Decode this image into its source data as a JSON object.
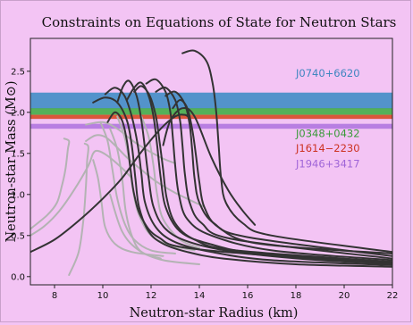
{
  "chart_data": {
    "type": "line",
    "title": "Constraints on Equations of State for Neutron Stars",
    "xlabel": "Neutron-star Radius (km)",
    "ylabel": "Neutron-star Mass (M⊙)",
    "xlim": [
      7,
      22
    ],
    "ylim": [
      -0.1,
      2.9
    ],
    "xticks": [
      8,
      10,
      12,
      14,
      16,
      18,
      20,
      22
    ],
    "yticks": [
      0.0,
      0.5,
      1.0,
      1.5,
      2.0,
      2.5
    ],
    "grid": false,
    "bands": [
      {
        "name": "J0740+6620",
        "low": 2.04,
        "high": 2.24,
        "color": "#4a90c8",
        "text_color": "#3f86c0",
        "label_x": 18.0,
        "label_y": 2.43
      },
      {
        "name": "J0348+0432",
        "low": 1.97,
        "high": 2.05,
        "color": "#4caf50",
        "text_color": "#3a9a3a",
        "label_x": 18.0,
        "label_y": 1.7
      },
      {
        "name": "J1614−2230",
        "low": 1.92,
        "high": 1.97,
        "color": "#d95030",
        "text_color": "#cc3322",
        "label_x": 18.0,
        "label_y": 1.52
      },
      {
        "name": "J1946+3417",
        "low": 1.8,
        "high": 1.86,
        "color": "#b47ae0",
        "text_color": "#a066d8",
        "label_x": 18.0,
        "label_y": 1.33
      }
    ],
    "series_styles": {
      "gray": {
        "color": "#b3b3b3",
        "width": 2.0
      },
      "dark": {
        "color": "#333333",
        "width": 2.0
      }
    },
    "series": [
      {
        "group": "gray",
        "points": [
          [
            7.0,
            0.58
          ],
          [
            7.7,
            0.75
          ],
          [
            8.1,
            0.9
          ],
          [
            8.3,
            1.1
          ],
          [
            8.45,
            1.3
          ],
          [
            8.55,
            1.55
          ],
          [
            8.6,
            1.65
          ],
          [
            8.4,
            1.68
          ]
        ]
      },
      {
        "group": "gray",
        "points": [
          [
            8.6,
            0.02
          ],
          [
            9.0,
            0.3
          ],
          [
            9.2,
            0.7
          ],
          [
            9.3,
            1.1
          ],
          [
            9.35,
            1.4
          ],
          [
            9.4,
            1.58
          ],
          [
            9.25,
            1.62
          ]
        ]
      },
      {
        "group": "gray",
        "points": [
          [
            7.0,
            0.5
          ],
          [
            7.6,
            0.62
          ],
          [
            8.2,
            0.8
          ],
          [
            8.8,
            1.05
          ],
          [
            9.4,
            1.35
          ],
          [
            9.6,
            1.5
          ],
          [
            9.8,
            1.53
          ],
          [
            10.2,
            1.47
          ],
          [
            10.8,
            1.32
          ],
          [
            11.2,
            1.2
          ]
        ]
      },
      {
        "group": "gray",
        "points": [
          [
            9.3,
            1.65
          ],
          [
            9.7,
            1.72
          ],
          [
            10.1,
            1.7
          ],
          [
            10.5,
            1.6
          ],
          [
            11.0,
            1.45
          ],
          [
            11.6,
            1.3
          ],
          [
            12.2,
            1.16
          ],
          [
            13.0,
            1.02
          ],
          [
            14.2,
            0.85
          ]
        ]
      },
      {
        "group": "gray",
        "points": [
          [
            9.3,
            1.85
          ],
          [
            10.0,
            1.88
          ],
          [
            10.6,
            1.8
          ],
          [
            11.4,
            1.62
          ],
          [
            12.4,
            1.45
          ],
          [
            13.0,
            1.38
          ]
        ]
      },
      {
        "group": "gray",
        "points": [
          [
            10.3,
            1.8
          ],
          [
            10.6,
            1.55
          ],
          [
            10.8,
            1.2
          ],
          [
            10.95,
            0.8
          ],
          [
            11.2,
            0.5
          ],
          [
            11.6,
            0.3
          ],
          [
            12.4,
            0.22
          ]
        ]
      },
      {
        "group": "gray",
        "points": [
          [
            9.9,
            1.88
          ],
          [
            10.2,
            1.65
          ],
          [
            10.4,
            1.3
          ],
          [
            10.6,
            0.95
          ],
          [
            10.9,
            0.65
          ],
          [
            11.3,
            0.45
          ],
          [
            12.0,
            0.32
          ],
          [
            13.0,
            0.28
          ]
        ]
      },
      {
        "group": "gray",
        "points": [
          [
            9.6,
            1.42
          ],
          [
            9.8,
            1.2
          ],
          [
            9.95,
            0.9
          ],
          [
            10.1,
            0.6
          ],
          [
            10.5,
            0.4
          ],
          [
            11.2,
            0.3
          ],
          [
            12.5,
            0.25
          ]
        ]
      },
      {
        "group": "gray",
        "points": [
          [
            10.6,
            1.95
          ],
          [
            10.9,
            1.7
          ],
          [
            11.1,
            1.4
          ],
          [
            11.25,
            1.05
          ],
          [
            11.5,
            0.75
          ],
          [
            12.0,
            0.5
          ],
          [
            12.8,
            0.38
          ],
          [
            13.8,
            0.32
          ]
        ]
      },
      {
        "group": "gray",
        "points": [
          [
            11.6,
            1.95
          ],
          [
            11.9,
            1.7
          ],
          [
            12.1,
            1.35
          ],
          [
            12.25,
            1.0
          ],
          [
            12.5,
            0.7
          ],
          [
            13.2,
            0.45
          ],
          [
            14.0,
            0.35
          ]
        ]
      },
      {
        "group": "gray",
        "points": [
          [
            10.3,
            1.0
          ],
          [
            10.8,
            0.55
          ],
          [
            11.5,
            0.32
          ],
          [
            12.5,
            0.2
          ],
          [
            14.0,
            0.15
          ]
        ]
      },
      {
        "group": "dark",
        "points": [
          [
            7.0,
            0.3
          ],
          [
            8.0,
            0.45
          ],
          [
            9.0,
            0.68
          ],
          [
            10.0,
            0.95
          ],
          [
            10.8,
            1.2
          ],
          [
            11.6,
            1.52
          ],
          [
            12.4,
            1.8
          ],
          [
            13.0,
            1.95
          ],
          [
            13.4,
            1.97
          ],
          [
            13.6,
            1.93
          ]
        ]
      },
      {
        "group": "dark",
        "points": [
          [
            9.6,
            2.12
          ],
          [
            10.1,
            2.18
          ],
          [
            10.6,
            2.12
          ],
          [
            11.0,
            1.9
          ],
          [
            11.2,
            1.6
          ],
          [
            11.35,
            1.2
          ],
          [
            11.5,
            0.85
          ],
          [
            11.9,
            0.55
          ],
          [
            12.5,
            0.4
          ],
          [
            13.5,
            0.3
          ],
          [
            15.0,
            0.22
          ],
          [
            18.0,
            0.15
          ],
          [
            22.0,
            0.12
          ]
        ]
      },
      {
        "group": "dark",
        "points": [
          [
            10.1,
            2.22
          ],
          [
            10.5,
            2.3
          ],
          [
            10.9,
            2.2
          ],
          [
            11.2,
            1.95
          ],
          [
            11.45,
            1.6
          ],
          [
            11.6,
            1.25
          ],
          [
            11.75,
            0.9
          ],
          [
            12.2,
            0.6
          ],
          [
            13.0,
            0.42
          ],
          [
            14.5,
            0.3
          ],
          [
            17.0,
            0.2
          ],
          [
            22.0,
            0.14
          ]
        ]
      },
      {
        "group": "dark",
        "points": [
          [
            10.6,
            2.12
          ],
          [
            10.85,
            2.32
          ],
          [
            11.1,
            2.38
          ],
          [
            11.4,
            2.2
          ],
          [
            11.6,
            1.9
          ],
          [
            11.75,
            1.55
          ],
          [
            11.9,
            1.2
          ],
          [
            12.1,
            0.85
          ],
          [
            12.6,
            0.58
          ],
          [
            13.6,
            0.42
          ],
          [
            15.5,
            0.3
          ],
          [
            19.0,
            0.2
          ],
          [
            22.0,
            0.16
          ]
        ]
      },
      {
        "group": "dark",
        "points": [
          [
            11.0,
            2.15
          ],
          [
            11.3,
            2.3
          ],
          [
            11.6,
            2.36
          ],
          [
            11.9,
            2.2
          ],
          [
            12.1,
            1.95
          ],
          [
            12.25,
            1.6
          ],
          [
            12.4,
            1.2
          ],
          [
            12.6,
            0.85
          ],
          [
            13.2,
            0.55
          ],
          [
            14.4,
            0.4
          ],
          [
            16.5,
            0.28
          ],
          [
            22.0,
            0.17
          ]
        ]
      },
      {
        "group": "dark",
        "points": [
          [
            11.3,
            2.25
          ],
          [
            11.6,
            2.32
          ],
          [
            11.95,
            2.2
          ],
          [
            12.2,
            1.95
          ],
          [
            12.35,
            1.65
          ],
          [
            12.5,
            1.3
          ],
          [
            12.65,
            0.95
          ],
          [
            13.0,
            0.65
          ],
          [
            13.8,
            0.45
          ],
          [
            15.5,
            0.32
          ],
          [
            22.0,
            0.18
          ]
        ]
      },
      {
        "group": "dark",
        "points": [
          [
            11.8,
            2.35
          ],
          [
            12.2,
            2.4
          ],
          [
            12.6,
            2.25
          ],
          [
            12.8,
            2.0
          ],
          [
            12.9,
            1.7
          ],
          [
            13.0,
            1.35
          ],
          [
            13.15,
            1.0
          ],
          [
            13.5,
            0.7
          ],
          [
            14.5,
            0.5
          ],
          [
            17.0,
            0.32
          ],
          [
            22.0,
            0.2
          ]
        ]
      },
      {
        "group": "dark",
        "points": [
          [
            12.2,
            2.25
          ],
          [
            12.6,
            2.3
          ],
          [
            13.0,
            2.15
          ],
          [
            13.2,
            1.9
          ],
          [
            13.3,
            1.6
          ],
          [
            13.4,
            1.25
          ],
          [
            13.6,
            0.9
          ],
          [
            14.1,
            0.65
          ],
          [
            15.5,
            0.45
          ],
          [
            22.0,
            0.22
          ]
        ]
      },
      {
        "group": "dark",
        "points": [
          [
            12.6,
            2.2
          ],
          [
            13.0,
            2.25
          ],
          [
            13.4,
            2.1
          ],
          [
            13.6,
            1.85
          ],
          [
            13.7,
            1.55
          ],
          [
            13.8,
            1.2
          ],
          [
            14.0,
            0.9
          ],
          [
            14.6,
            0.65
          ],
          [
            16.0,
            0.48
          ],
          [
            22.0,
            0.25
          ]
        ]
      },
      {
        "group": "dark",
        "points": [
          [
            13.3,
            2.72
          ],
          [
            13.8,
            2.75
          ],
          [
            14.3,
            2.62
          ],
          [
            14.55,
            2.35
          ],
          [
            14.7,
            2.0
          ],
          [
            14.8,
            1.6
          ],
          [
            14.9,
            1.2
          ],
          [
            15.1,
            0.9
          ],
          [
            15.8,
            0.65
          ],
          [
            17.0,
            0.5
          ],
          [
            22.0,
            0.3
          ]
        ]
      },
      {
        "group": "dark",
        "points": [
          [
            12.5,
            1.6
          ],
          [
            12.8,
            1.9
          ],
          [
            13.3,
            2.05
          ],
          [
            13.8,
            1.95
          ],
          [
            14.5,
            1.45
          ],
          [
            15.2,
            1.05
          ],
          [
            15.8,
            0.8
          ],
          [
            16.3,
            0.63
          ]
        ]
      },
      {
        "group": "dark",
        "points": [
          [
            12.9,
            2.05
          ],
          [
            13.2,
            2.15
          ],
          [
            13.5,
            2.05
          ],
          [
            13.7,
            1.8
          ],
          [
            13.85,
            1.5
          ],
          [
            14.0,
            1.15
          ],
          [
            14.2,
            0.85
          ],
          [
            14.8,
            0.6
          ],
          [
            16.5,
            0.4
          ],
          [
            22.0,
            0.28
          ]
        ]
      },
      {
        "group": "dark",
        "points": [
          [
            10.2,
            1.88
          ],
          [
            10.5,
            2.0
          ],
          [
            10.8,
            1.9
          ],
          [
            11.0,
            1.65
          ],
          [
            11.15,
            1.3
          ],
          [
            11.3,
            1.0
          ],
          [
            11.6,
            0.72
          ],
          [
            12.3,
            0.48
          ],
          [
            14.0,
            0.33
          ],
          [
            22.0,
            0.15
          ]
        ]
      }
    ]
  }
}
